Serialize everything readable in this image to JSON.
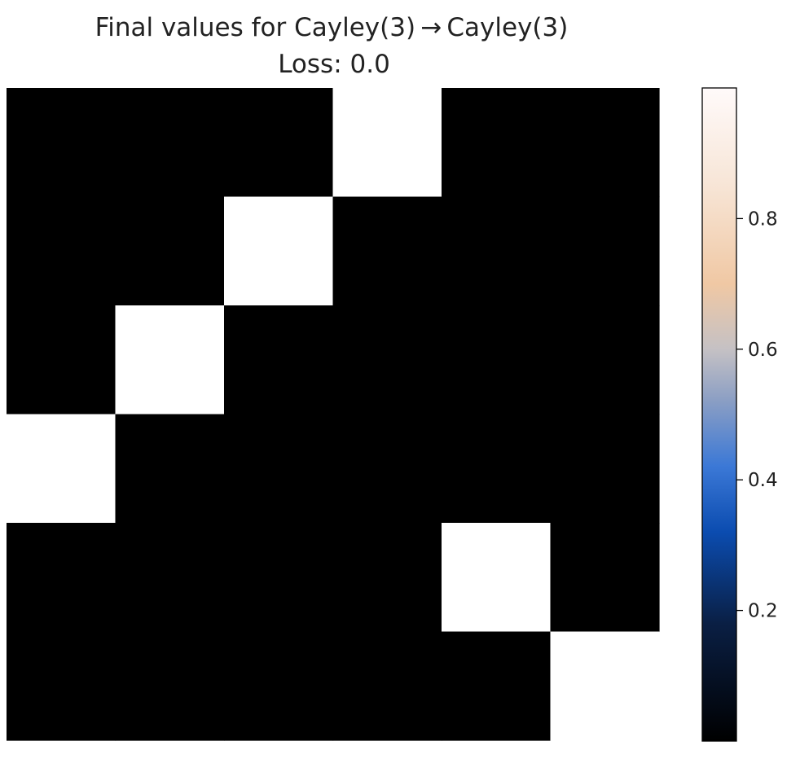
{
  "chart_data": {
    "type": "heatmap",
    "title": "Final values for Cayley(3) → Cayley(3)",
    "subtitle": "Loss: 0.0",
    "xlabel": "",
    "ylabel": "",
    "axes_visible": false,
    "grid": false,
    "n_rows": 6,
    "n_cols": 6,
    "values": [
      [
        0,
        0,
        0,
        1,
        0,
        0
      ],
      [
        0,
        0,
        1,
        0,
        0,
        0
      ],
      [
        0,
        1,
        0,
        0,
        0,
        0
      ],
      [
        1,
        0,
        0,
        0,
        0,
        0
      ],
      [
        0,
        0,
        0,
        0,
        1,
        0
      ],
      [
        0,
        0,
        0,
        0,
        0,
        1
      ]
    ],
    "mask_value": 1,
    "masked_color": "#ffffff",
    "colorbar": {
      "range": [
        0.0,
        1.0
      ],
      "ticks": [
        {
          "value": 0.2,
          "label": "0.2"
        },
        {
          "value": 0.4,
          "label": "0.4"
        },
        {
          "value": 0.6,
          "label": "0.6"
        },
        {
          "value": 0.8,
          "label": "0.8"
        }
      ],
      "colormap_stops": [
        {
          "offset": 0.0,
          "color": "#000000"
        },
        {
          "offset": 0.18,
          "color": "#0a1f44"
        },
        {
          "offset": 0.32,
          "color": "#0b4cb0"
        },
        {
          "offset": 0.42,
          "color": "#3b78d6"
        },
        {
          "offset": 0.52,
          "color": "#8a9ec4"
        },
        {
          "offset": 0.6,
          "color": "#c5c1c4"
        },
        {
          "offset": 0.7,
          "color": "#f0c8a4"
        },
        {
          "offset": 0.85,
          "color": "#f7e5d6"
        },
        {
          "offset": 1.0,
          "color": "#fffafa"
        }
      ]
    }
  }
}
